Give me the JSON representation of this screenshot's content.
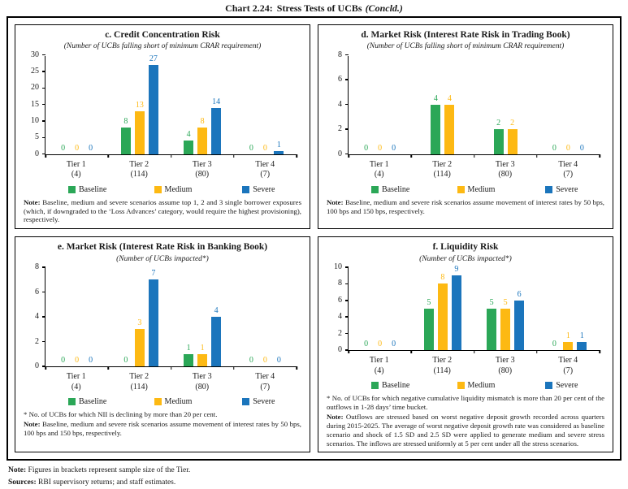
{
  "page": {
    "title": {
      "label": "Chart 2.24:",
      "text": "Stress Tests of UCBs",
      "suffix": "(Concld.)"
    },
    "footer": {
      "note_label": "Note:",
      "note": "Figures in brackets represent sample size of the Tier.",
      "sources_label": "Sources:",
      "sources": "RBI supervisory returns; and staff estimates."
    }
  },
  "colors": {
    "baseline": "#2BA757",
    "medium": "#FDB913",
    "severe": "#1B75BC"
  },
  "legend_labels": [
    "Baseline",
    "Medium",
    "Severe"
  ],
  "chart_data": [
    {
      "id": "c",
      "type": "bar",
      "title": "c. Credit Concentration Risk",
      "subtitle": "(Number of UCBs falling short of minimum CRAR requirement)",
      "ylim": [
        0,
        30
      ],
      "ytick_step": 5,
      "grid": false,
      "legend_position": "bottom",
      "categories": [
        "Tier 1",
        "Tier 2",
        "Tier 3",
        "Tier 4"
      ],
      "sample_sizes": [
        "(4)",
        "(114)",
        "(80)",
        "(7)"
      ],
      "series": [
        {
          "name": "Baseline",
          "color": "baseline",
          "values": [
            0,
            8,
            4,
            0
          ]
        },
        {
          "name": "Medium",
          "color": "medium",
          "values": [
            0,
            13,
            8,
            0
          ]
        },
        {
          "name": "Severe",
          "color": "severe",
          "values": [
            0,
            27,
            14,
            1
          ]
        }
      ],
      "footnote": null,
      "note_label": "Note:",
      "note": "Baseline, medium and severe scenarios assume top 1, 2 and 3 single borrower exposures (which, if downgraded to the ‘Loss Advances’ category, would require the highest provisioning), respectively."
    },
    {
      "id": "d",
      "type": "bar",
      "title": "d. Market Risk (Interest Rate Risk in Trading Book)",
      "subtitle": "(Number of UCBs falling short of minimum CRAR requirement)",
      "ylim": [
        0,
        8
      ],
      "ytick_step": 2,
      "grid": false,
      "legend_position": "bottom",
      "categories": [
        "Tier 1",
        "Tier 2",
        "Tier 3",
        "Tier 4"
      ],
      "sample_sizes": [
        "(4)",
        "(114)",
        "(80)",
        "(7)"
      ],
      "series": [
        {
          "name": "Baseline",
          "color": "baseline",
          "values": [
            0,
            4,
            2,
            0
          ]
        },
        {
          "name": "Medium",
          "color": "medium",
          "values": [
            0,
            4,
            2,
            0
          ]
        },
        {
          "name": "Severe",
          "color": "severe",
          "values": [
            0,
            null,
            null,
            0
          ]
        }
      ],
      "footnote": null,
      "note_label": "Note:",
      "note": "Baseline, medium and severe risk scenarios assume movement of interest rates by 50 bps, 100 bps and 150 bps, respectively."
    },
    {
      "id": "e",
      "type": "bar",
      "title": "e. Market Risk (Interest Rate Risk in Banking Book)",
      "subtitle": "(Number of UCBs impacted*)",
      "ylim": [
        0,
        8
      ],
      "ytick_step": 2,
      "grid": false,
      "legend_position": "bottom",
      "categories": [
        "Tier 1",
        "Tier 2",
        "Tier 3",
        "Tier 4"
      ],
      "sample_sizes": [
        "(4)",
        "(114)",
        "(80)",
        "(7)"
      ],
      "series": [
        {
          "name": "Baseline",
          "color": "baseline",
          "values": [
            0,
            0,
            1,
            0
          ]
        },
        {
          "name": "Medium",
          "color": "medium",
          "values": [
            0,
            3,
            1,
            0
          ]
        },
        {
          "name": "Severe",
          "color": "severe",
          "values": [
            0,
            7,
            4,
            0
          ]
        }
      ],
      "footnote": "* No. of UCBs for which NII is declining by more than 20 per cent.",
      "note_label": "Note:",
      "note": "Baseline, medium and severe risk scenarios assume movement of interest rates by 50 bps, 100 bps and 150 bps, respectively."
    },
    {
      "id": "f",
      "type": "bar",
      "title": "f. Liquidity Risk",
      "subtitle": "(Number of UCBs impacted*)",
      "ylim": [
        0,
        10
      ],
      "ytick_step": 2,
      "grid": false,
      "legend_position": "bottom",
      "categories": [
        "Tier 1",
        "Tier 2",
        "Tier 3",
        "Tier 4"
      ],
      "sample_sizes": [
        "(4)",
        "(114)",
        "(80)",
        "(7)"
      ],
      "series": [
        {
          "name": "Baseline",
          "color": "baseline",
          "values": [
            0,
            5,
            5,
            0
          ]
        },
        {
          "name": "Medium",
          "color": "medium",
          "values": [
            0,
            8,
            5,
            1
          ]
        },
        {
          "name": "Severe",
          "color": "severe",
          "values": [
            0,
            9,
            6,
            1
          ]
        }
      ],
      "footnote": "* No. of UCBs for which negative cumulative liquidity mismatch is more than 20 per cent of the outflows in 1-28 days’ time bucket.",
      "note_label": "Note:",
      "note": "Outflows are stressed based on worst negative deposit growth recorded across quarters during 2015-2025. The average of worst negative deposit growth rate was considered as baseline scenario and shock of 1.5 SD and 2.5 SD were applied to generate medium and severe stress scenarios. The inflows are stressed uniformly at 5 per cent under all the stress scenarios."
    }
  ]
}
